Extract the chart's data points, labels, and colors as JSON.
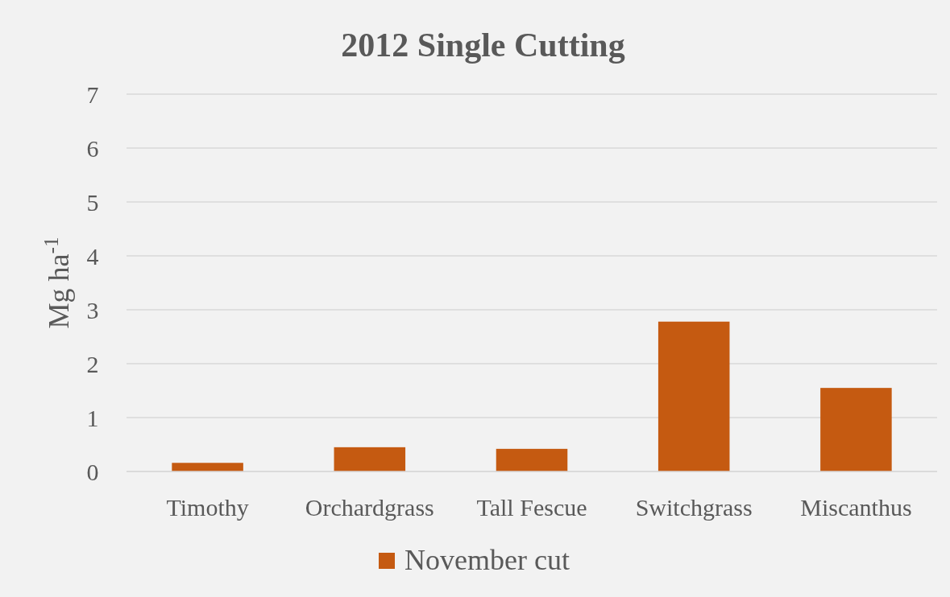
{
  "chart_data": {
    "type": "bar",
    "title": "2012 Single Cutting",
    "ylabel": "Mg ha$^{-1}$",
    "categories": [
      "Timothy",
      "Orchardgrass",
      "Tall Fescue",
      "Switchgrass",
      "Miscanthus"
    ],
    "series": [
      {
        "name": "November cut",
        "color": "#c55a11",
        "values": [
          0.16,
          0.45,
          0.42,
          2.78,
          1.55
        ]
      }
    ],
    "ylim": [
      0,
      7
    ],
    "yticks": [
      0,
      1,
      2,
      3,
      4,
      5,
      6,
      7
    ],
    "grid": "y",
    "legend": "bottom"
  }
}
